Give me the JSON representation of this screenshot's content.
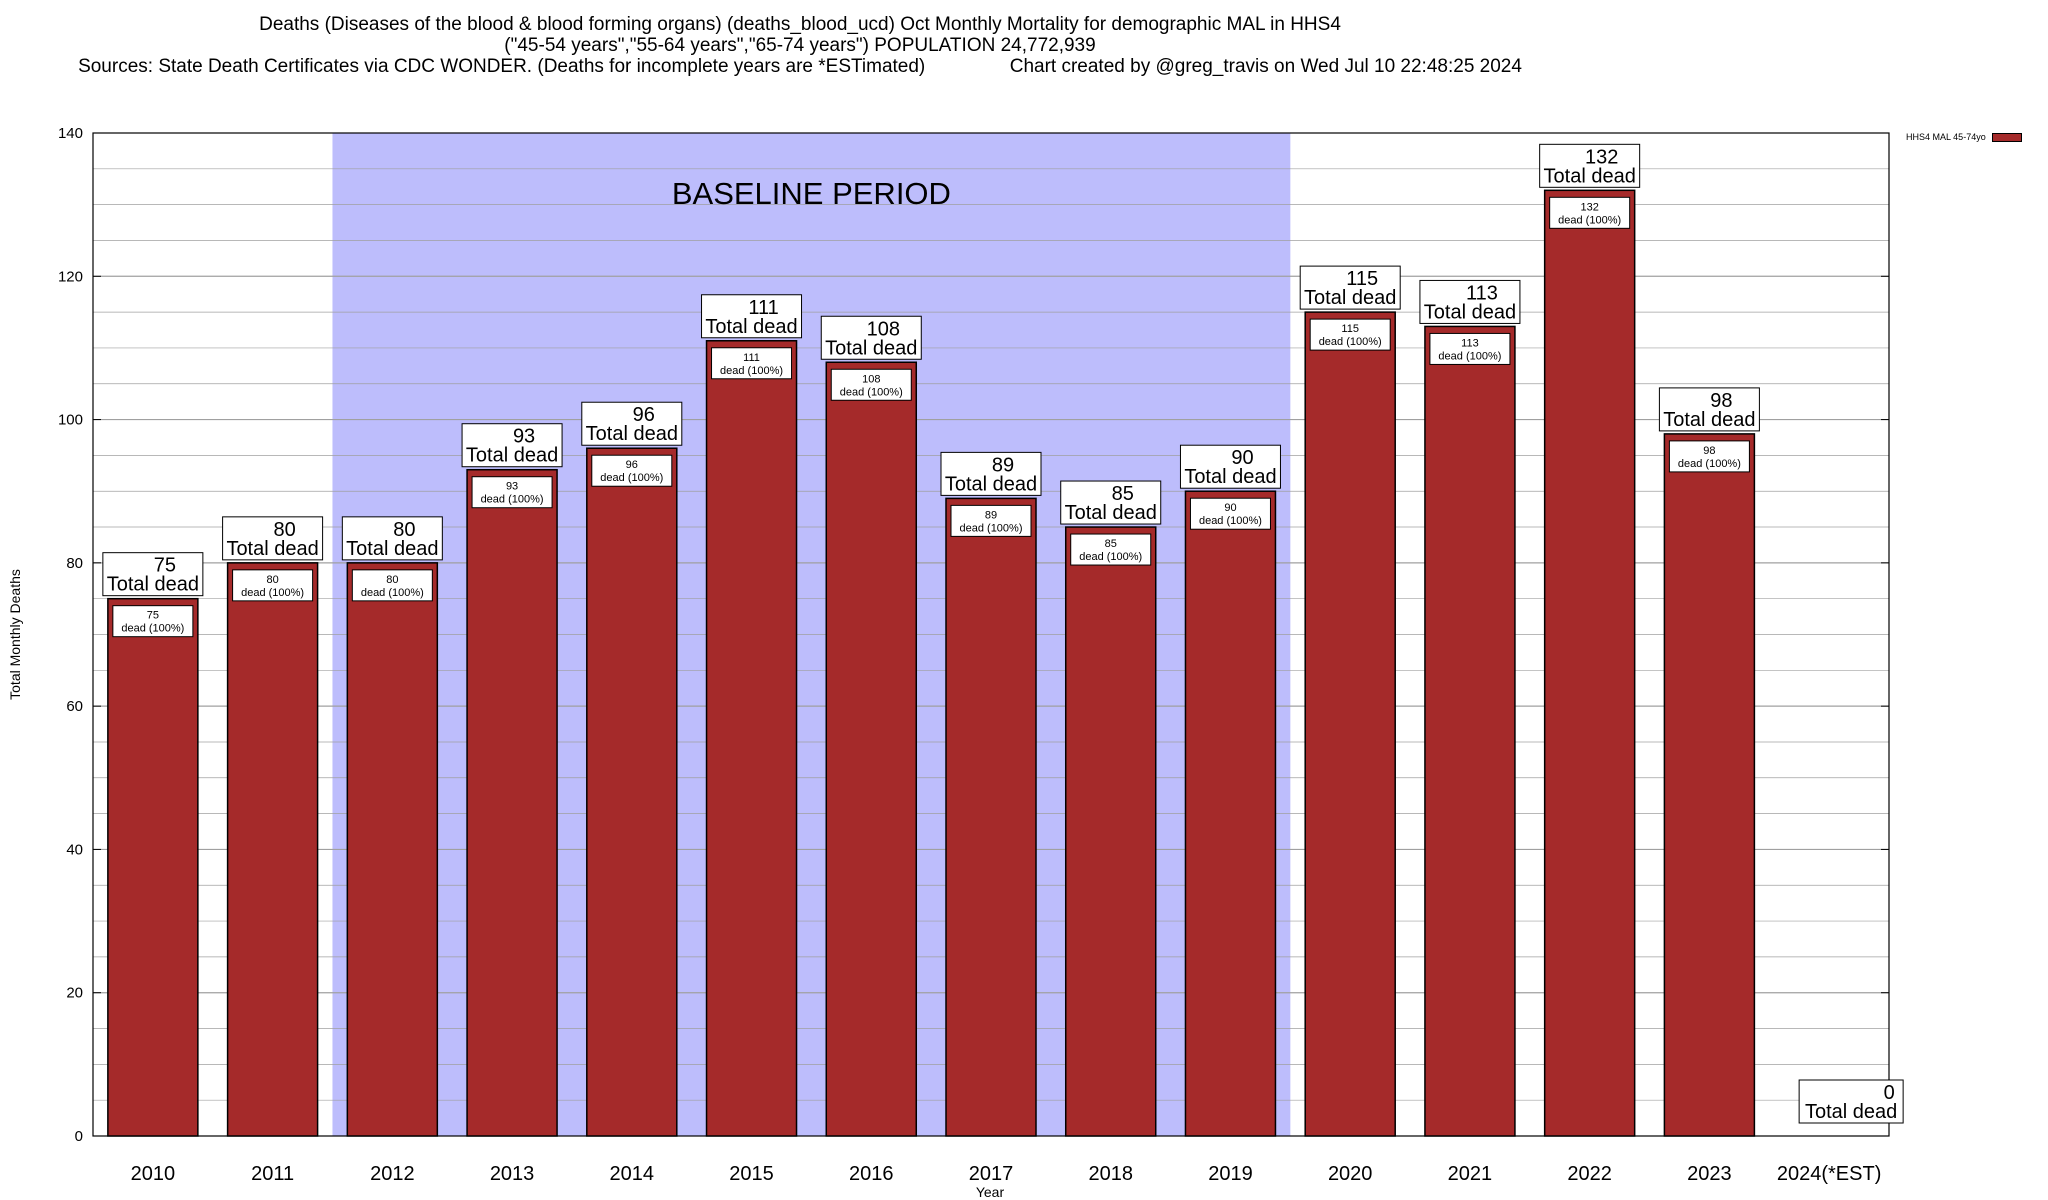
{
  "title": {
    "line1": "Deaths (Diseases of the blood & blood forming organs) (deaths_blood_ucd) Oct Monthly Mortality for demographic MAL in HHS4",
    "line2": "(\"45-54 years\",\"55-64 years\",\"65-74 years\") POPULATION 24,772,939",
    "sources": "Sources: State Death Certificates via CDC WONDER. (Deaths for incomplete years are *ESTimated)",
    "created": "Chart created by @greg_travis on Wed Jul 10 22:48:25 2024"
  },
  "legend": {
    "label": "HHS4 MAL 45-74yo"
  },
  "colors": {
    "bar": "#a52a2a",
    "baseline_shade": "#bdbdfc",
    "grid": "#a0a0a0"
  },
  "chart_data": {
    "type": "bar",
    "xlabel": "Year",
    "ylabel": "Total Monthly Deaths",
    "ylim": [
      0,
      140
    ],
    "yticks": [
      0,
      20,
      40,
      60,
      80,
      100,
      120,
      140
    ],
    "grid": true,
    "legend_position": "top-right",
    "categories": [
      "2010",
      "2011",
      "2012",
      "2013",
      "2014",
      "2015",
      "2016",
      "2017",
      "2018",
      "2019",
      "2020",
      "2021",
      "2022",
      "2023",
      "2024(*EST)"
    ],
    "series": [
      {
        "name": "HHS4 MAL 45-74yo",
        "values": [
          75,
          80,
          80,
          93,
          96,
          111,
          108,
          89,
          85,
          90,
          115,
          113,
          132,
          98,
          0
        ]
      }
    ],
    "top_label_suffix": "Total dead",
    "inner_label_suffix": "dead (100%)",
    "baseline_period": {
      "label": "BASELINE PERIOD",
      "from": "2012",
      "to": "2019"
    }
  }
}
